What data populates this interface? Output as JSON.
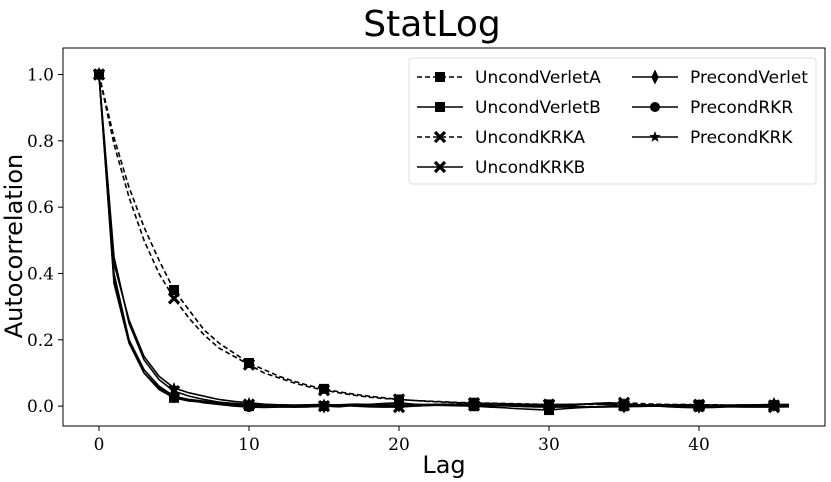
{
  "chart_data": {
    "type": "line",
    "title": "StatLog",
    "xlabel": "Lag",
    "ylabel": "Autocorrelation",
    "xlim": [
      -2.4,
      48.4
    ],
    "ylim": [
      -0.06,
      1.08
    ],
    "xticks": [
      0,
      10,
      20,
      30,
      40
    ],
    "yticks": [
      0.0,
      0.2,
      0.4,
      0.6,
      0.8,
      1.0
    ],
    "xtick_labels": [
      "0",
      "10",
      "20",
      "30",
      "40"
    ],
    "ytick_labels": [
      "0.0",
      "0.2",
      "0.4",
      "0.6",
      "0.8",
      "1.0"
    ],
    "grid": false,
    "legend": {
      "position": "top-right",
      "columns": 2
    },
    "x": [
      0,
      1,
      2,
      3,
      4,
      5,
      6,
      7,
      8,
      9,
      10,
      11,
      12,
      13,
      14,
      15,
      16,
      17,
      18,
      19,
      20,
      21,
      22,
      23,
      24,
      25,
      26,
      27,
      28,
      29,
      30,
      31,
      32,
      33,
      34,
      35,
      36,
      37,
      38,
      39,
      40,
      41,
      42,
      43,
      44,
      45,
      46
    ],
    "series": [
      {
        "name": "UncondVerletA",
        "line_style": "dashed",
        "marker": "square",
        "color": "#000000",
        "values": [
          1.0,
          0.81,
          0.66,
          0.54,
          0.44,
          0.35,
          0.29,
          0.23,
          0.19,
          0.16,
          0.13,
          0.11,
          0.09,
          0.075,
          0.062,
          0.052,
          0.043,
          0.036,
          0.03,
          0.025,
          0.02,
          0.017,
          0.015,
          0.013,
          0.011,
          0.01,
          0.009,
          0.008,
          0.007,
          0.006,
          0.005,
          0.005,
          0.005,
          0.005,
          0.005,
          0.005,
          0.004,
          0.004,
          0.004,
          0.004,
          0.004,
          0.003,
          0.003,
          0.003,
          0.003,
          0.003,
          0.003
        ]
      },
      {
        "name": "UncondVerletB",
        "line_style": "solid",
        "marker": "square",
        "color": "#000000",
        "values": [
          1.0,
          0.4,
          0.2,
          0.1,
          0.05,
          0.025,
          0.015,
          0.012,
          0.008,
          0.004,
          0.0,
          0.002,
          0.004,
          0.002,
          0.003,
          0.0,
          -0.002,
          0.002,
          0.005,
          0.008,
          0.01,
          0.006,
          0.004,
          0.003,
          0.002,
          0.0,
          -0.003,
          -0.005,
          -0.008,
          -0.01,
          -0.012,
          -0.008,
          -0.005,
          -0.003,
          -0.002,
          0.0,
          0.001,
          0.002,
          0.003,
          0.002,
          0.0,
          0.001,
          0.002,
          0.003,
          0.002,
          0.002,
          0.003
        ]
      },
      {
        "name": "UncondKRKA",
        "line_style": "dashed",
        "marker": "x",
        "color": "#000000",
        "values": [
          1.0,
          0.79,
          0.63,
          0.5,
          0.4,
          0.325,
          0.265,
          0.215,
          0.175,
          0.15,
          0.125,
          0.1,
          0.085,
          0.07,
          0.058,
          0.048,
          0.04,
          0.033,
          0.027,
          0.023,
          0.02,
          0.017,
          0.014,
          0.012,
          0.01,
          0.009,
          0.008,
          0.007,
          0.006,
          0.005,
          0.005,
          0.005,
          0.006,
          0.007,
          0.008,
          0.01,
          0.008,
          0.006,
          0.005,
          0.005,
          0.004,
          0.004,
          0.003,
          0.003,
          0.003,
          0.002,
          0.002
        ]
      },
      {
        "name": "UncondKRKB",
        "line_style": "solid",
        "marker": "x",
        "color": "#000000",
        "values": [
          1.0,
          0.45,
          0.25,
          0.14,
          0.08,
          0.045,
          0.03,
          0.02,
          0.012,
          0.008,
          0.005,
          0.003,
          0.0,
          -0.003,
          -0.002,
          0.0,
          0.002,
          0.003,
          0.0,
          -0.002,
          -0.003,
          0.0,
          0.002,
          0.003,
          0.003,
          0.002,
          0.002,
          0.004,
          0.005,
          0.004,
          0.003,
          0.004,
          0.006,
          0.007,
          0.004,
          0.002,
          0.0,
          0.0,
          0.0,
          0.0,
          0.0,
          0.0,
          -0.002,
          -0.003,
          -0.003,
          -0.003,
          -0.002
        ]
      },
      {
        "name": "PrecondVerlet",
        "line_style": "solid",
        "marker": "diamond",
        "color": "#000000",
        "values": [
          1.0,
          0.38,
          0.2,
          0.11,
          0.06,
          0.03,
          0.02,
          0.015,
          0.01,
          0.006,
          0.003,
          0.0,
          -0.002,
          -0.003,
          -0.002,
          0.0,
          0.004,
          0.006,
          0.005,
          0.004,
          0.003,
          0.004,
          0.005,
          0.006,
          0.005,
          0.005,
          0.004,
          0.002,
          0.0,
          -0.002,
          -0.003,
          -0.003,
          -0.003,
          -0.002,
          -0.001,
          0.0,
          0.001,
          0.0,
          0.0,
          -0.001,
          -0.001,
          0.0,
          0.002,
          0.003,
          0.004,
          0.005,
          0.005
        ]
      },
      {
        "name": "PrecondRKR",
        "line_style": "solid",
        "marker": "circle",
        "color": "#000000",
        "values": [
          1.0,
          0.37,
          0.19,
          0.1,
          0.055,
          0.03,
          0.018,
          0.01,
          0.005,
          0.0,
          -0.003,
          -0.004,
          -0.003,
          -0.002,
          -0.001,
          0.0,
          0.001,
          0.002,
          0.001,
          0.0,
          0.001,
          0.002,
          0.003,
          0.002,
          0.001,
          0.0,
          0.0,
          0.001,
          0.002,
          0.002,
          0.0,
          -0.001,
          -0.002,
          -0.003,
          -0.002,
          -0.002,
          -0.001,
          0.0,
          0.001,
          0.001,
          0.0,
          0.0,
          0.0,
          0.001,
          0.001,
          0.001,
          0.001
        ]
      },
      {
        "name": "PrecondKRK",
        "line_style": "solid",
        "marker": "star",
        "color": "#000000",
        "values": [
          1.0,
          0.43,
          0.26,
          0.15,
          0.09,
          0.055,
          0.04,
          0.03,
          0.02,
          0.014,
          0.01,
          0.006,
          0.004,
          0.003,
          0.004,
          0.005,
          0.003,
          0.0,
          -0.002,
          -0.003,
          -0.002,
          0.0,
          0.002,
          0.004,
          0.006,
          0.005,
          0.003,
          0.001,
          -0.001,
          -0.002,
          -0.002,
          0.0,
          0.004,
          0.008,
          0.01,
          0.008,
          0.004,
          0.001,
          -0.002,
          -0.004,
          -0.005,
          -0.004,
          -0.002,
          -0.001,
          0.0,
          0.001,
          0.002
        ]
      }
    ]
  }
}
